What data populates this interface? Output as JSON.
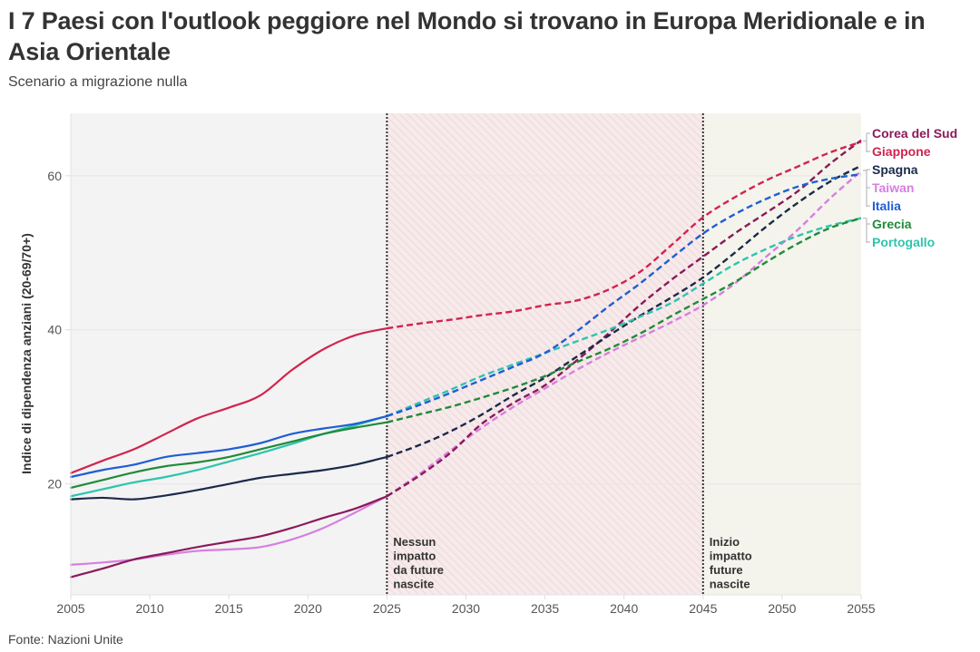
{
  "header": {
    "title": "I 7 Paesi con l'outlook peggiore nel Mondo si trovano in Europa Meridionale e in Asia Orientale",
    "subtitle": "Scenario a migrazione nulla"
  },
  "footer": {
    "source": "Fonte: Nazioni Unite"
  },
  "chart_data": {
    "type": "line",
    "title": "I 7 Paesi con l'outlook peggiore nel Mondo si trovano in Europa Meridionale e in Asia Orientale",
    "subtitle": "Scenario a migrazione nulla",
    "xlabel": "",
    "ylabel": "Indice di dipendenza anziani (20-69/70+)",
    "xlim": [
      2005,
      2055
    ],
    "ylim": [
      5.6,
      68.1
    ],
    "x_ticks": [
      2005,
      2010,
      2015,
      2020,
      2025,
      2030,
      2035,
      2040,
      2045,
      2050,
      2055
    ],
    "y_ticks": [
      20,
      40,
      60
    ],
    "grid": true,
    "legend_placement": "right (direct labels)",
    "projection_start": 2025,
    "regions": [
      {
        "from": 2005,
        "to": 2025,
        "label": "",
        "color": "#f3f3f3"
      },
      {
        "from": 2025,
        "to": 2045,
        "label": "Nessun impatto da future nascite",
        "color": "#f7e9ea",
        "hatched": true
      },
      {
        "from": 2045,
        "to": 2055,
        "label": "Inizio impatto future nascite",
        "color": "#f4f4ec"
      }
    ],
    "annotations": [
      {
        "x": 2025,
        "lines": [
          "Nessun",
          "impatto",
          "da future",
          "nascite"
        ]
      },
      {
        "x": 2045,
        "lines": [
          "Inizio",
          "impatto",
          "future",
          "nascite"
        ]
      }
    ],
    "x": [
      2005,
      2007,
      2009,
      2011,
      2013,
      2015,
      2017,
      2019,
      2021,
      2023,
      2025,
      2027,
      2029,
      2031,
      2033,
      2035,
      2037,
      2039,
      2041,
      2043,
      2045,
      2047,
      2049,
      2051,
      2053,
      2055
    ],
    "series": [
      {
        "name": "Corea del Sud",
        "color": "#8b1a5a",
        "values": [
          7.9,
          9.0,
          10.2,
          11.0,
          11.8,
          12.5,
          13.2,
          14.3,
          15.6,
          16.8,
          18.4,
          21.0,
          24.0,
          27.8,
          30.5,
          32.8,
          36.0,
          39.5,
          43.2,
          46.5,
          49.5,
          52.5,
          55.2,
          58.0,
          61.5,
          64.6
        ]
      },
      {
        "name": "Giappone",
        "color": "#d1244e",
        "values": [
          21.4,
          23.0,
          24.5,
          26.5,
          28.5,
          29.9,
          31.5,
          34.8,
          37.5,
          39.3,
          40.2,
          40.8,
          41.3,
          41.9,
          42.4,
          43.2,
          43.8,
          45.2,
          47.5,
          51.0,
          54.6,
          57.2,
          59.4,
          61.2,
          63.0,
          64.4
        ]
      },
      {
        "name": "Spagna",
        "color": "#1b2a4a",
        "values": [
          18.0,
          18.2,
          18.0,
          18.5,
          19.2,
          20.0,
          20.8,
          21.3,
          21.8,
          22.5,
          23.5,
          25.0,
          26.8,
          29.0,
          31.5,
          33.8,
          36.5,
          39.2,
          41.8,
          44.2,
          46.8,
          50.0,
          53.4,
          56.5,
          59.2,
          61.3
        ]
      },
      {
        "name": "Taiwan",
        "color": "#d67fe0",
        "values": [
          9.5,
          9.8,
          10.2,
          10.8,
          11.3,
          11.5,
          11.8,
          12.8,
          14.3,
          16.3,
          18.4,
          21.2,
          24.3,
          27.3,
          30.0,
          32.4,
          34.8,
          37.0,
          39.0,
          41.0,
          43.2,
          46.0,
          49.5,
          53.0,
          57.0,
          60.6
        ]
      },
      {
        "name": "Italia",
        "color": "#1f5ed4",
        "values": [
          20.9,
          21.8,
          22.5,
          23.5,
          24.0,
          24.5,
          25.3,
          26.5,
          27.2,
          27.8,
          28.8,
          30.2,
          31.8,
          33.5,
          35.2,
          37.0,
          39.8,
          43.0,
          46.0,
          49.3,
          52.5,
          55.0,
          57.0,
          58.6,
          59.6,
          60.2
        ]
      },
      {
        "name": "Grecia",
        "color": "#218a39",
        "values": [
          19.5,
          20.5,
          21.5,
          22.3,
          22.8,
          23.5,
          24.5,
          25.5,
          26.5,
          27.3,
          28.0,
          29.0,
          30.0,
          31.2,
          32.5,
          34.0,
          35.8,
          37.5,
          39.5,
          41.8,
          44.0,
          46.2,
          48.8,
          51.2,
          53.2,
          54.5
        ]
      },
      {
        "name": "Portogallo",
        "color": "#2ec4ad",
        "values": [
          18.4,
          19.3,
          20.2,
          20.9,
          21.8,
          22.9,
          24.0,
          25.2,
          26.5,
          27.6,
          28.8,
          30.5,
          32.2,
          34.0,
          35.5,
          37.0,
          38.5,
          40.0,
          41.7,
          43.5,
          46.0,
          48.5,
          50.5,
          52.2,
          53.5,
          54.5
        ]
      }
    ],
    "legend_groups": [
      [
        "Corea del Sud",
        "Giappone"
      ],
      [
        "Spagna",
        "Taiwan",
        "Italia"
      ],
      [
        "Grecia",
        "Portogallo"
      ]
    ]
  }
}
